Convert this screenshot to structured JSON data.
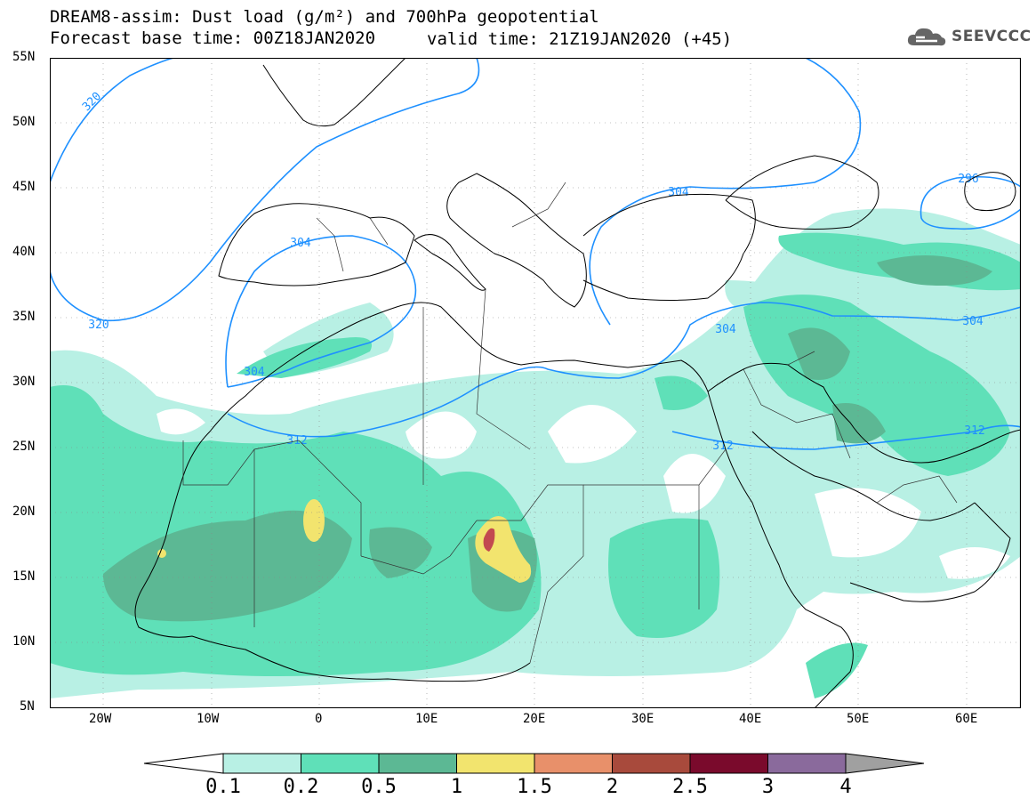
{
  "title": {
    "line1": "DREAM8-assim: Dust load (g/m²) and 700hPa geopotential",
    "line2": "Forecast base time: 00Z18JAN2020",
    "valid": "valid time: 21Z19JAN2020 (+45)"
  },
  "logo": {
    "text": "SEEVCCC",
    "icon": "cloud-icon"
  },
  "lat_labels": [
    "55N",
    "50N",
    "45N",
    "40N",
    "35N",
    "30N",
    "25N",
    "20N",
    "15N",
    "10N",
    "5N"
  ],
  "lon_labels": [
    "20W",
    "10W",
    "0",
    "10E",
    "20E",
    "30E",
    "40E",
    "50E",
    "60E"
  ],
  "contour_labels": [
    "320",
    "320",
    "304",
    "304",
    "304",
    "304",
    "304",
    "312",
    "312",
    "312",
    "296"
  ],
  "colorbar": {
    "labels": [
      "0.1",
      "0.2",
      "0.5",
      "1",
      "1.5",
      "2",
      "2.5",
      "3",
      "4"
    ],
    "colors": [
      "#ffffff",
      "#b8f0e4",
      "#5fe0b8",
      "#5cb894",
      "#f2e46e",
      "#e8906a",
      "#a84a3c",
      "#7a0a2c",
      "#8a6a9c",
      "#a0a0a0"
    ]
  },
  "colors": {
    "contour": "#1e90ff",
    "coast": "#000000"
  }
}
